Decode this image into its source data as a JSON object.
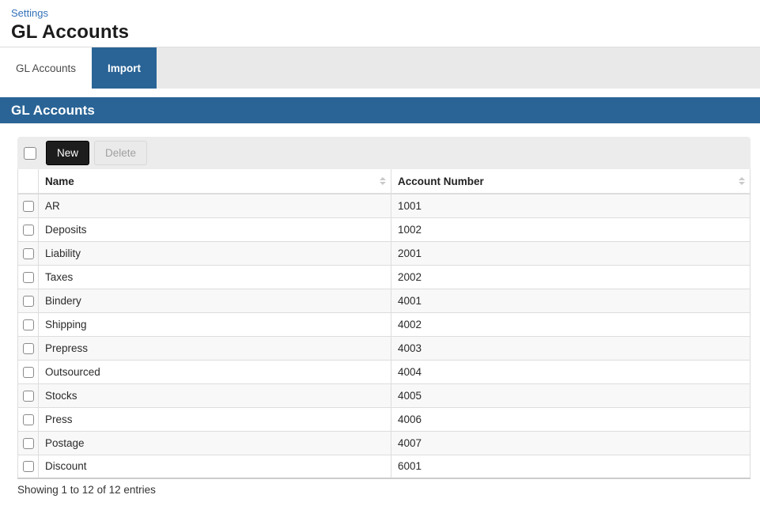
{
  "header": {
    "breadcrumb": "Settings",
    "title": "GL Accounts"
  },
  "tabs": [
    {
      "label": "GL Accounts",
      "active": false
    },
    {
      "label": "Import",
      "active": true
    }
  ],
  "panel": {
    "title": "GL Accounts"
  },
  "toolbar": {
    "new_label": "New",
    "delete_label": "Delete"
  },
  "table": {
    "columns": [
      "Name",
      "Account Number"
    ],
    "rows": [
      {
        "name": "AR",
        "number": "1001"
      },
      {
        "name": "Deposits",
        "number": "1002"
      },
      {
        "name": "Liability",
        "number": "2001"
      },
      {
        "name": "Taxes",
        "number": "2002"
      },
      {
        "name": "Bindery",
        "number": "4001"
      },
      {
        "name": "Shipping",
        "number": "4002"
      },
      {
        "name": "Prepress",
        "number": "4003"
      },
      {
        "name": "Outsourced",
        "number": "4004"
      },
      {
        "name": "Stocks",
        "number": "4005"
      },
      {
        "name": "Press",
        "number": "4006"
      },
      {
        "name": "Postage",
        "number": "4007"
      },
      {
        "name": "Discount",
        "number": "6001"
      }
    ]
  },
  "footer": {
    "summary": "Showing 1 to 12 of 12 entries"
  },
  "colors": {
    "accent_blue": "#2a6496",
    "link_blue": "#3272b8",
    "new_button_bg": "#1d1d1d",
    "toolbar_bg": "#ececec",
    "tab_bar_bg": "#e9e9e9",
    "stripe_bg": "#f8f8f8",
    "border": "#dddddd"
  }
}
